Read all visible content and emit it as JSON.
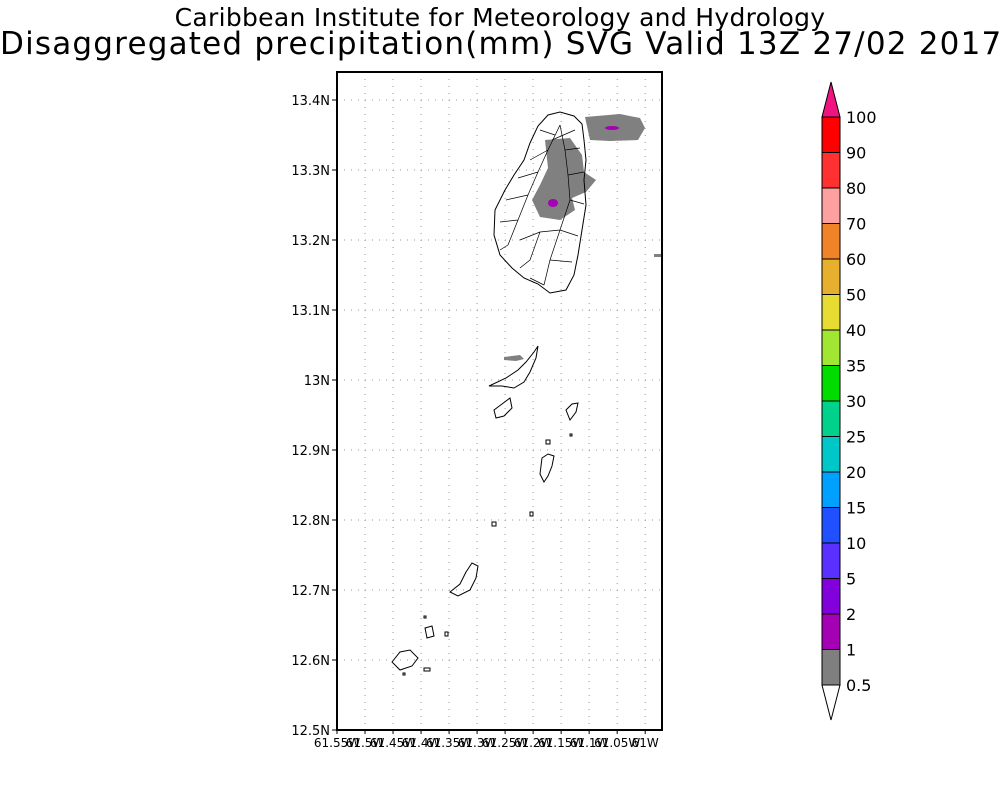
{
  "header": {
    "title": "Caribbean Institute for Meteorology and Hydrology",
    "subtitle": "Disaggregated precipitation(mm) SVG Valid 13Z 27/02 2017"
  },
  "map": {
    "lat_ticks": [
      "13.4N",
      "13.3N",
      "13.2N",
      "13.1N",
      "13N",
      "12.9N",
      "12.8N",
      "12.7N",
      "12.6N",
      "12.5N"
    ],
    "lon_ticks": [
      "61.55W",
      "61.5W",
      "61.45W",
      "61.4W",
      "61.35W",
      "61.3W",
      "61.25W",
      "61.2W",
      "61.15W",
      "61.1W",
      "61.05W",
      "61W"
    ],
    "lat_range": [
      12.5,
      13.44
    ],
    "lon_range": [
      -61.55,
      -60.97
    ],
    "grid": true
  },
  "legend": {
    "levels": [
      "0.5",
      "1",
      "2",
      "5",
      "10",
      "15",
      "20",
      "25",
      "30",
      "35",
      "40",
      "50",
      "60",
      "70",
      "80",
      "90",
      "100"
    ],
    "colors": [
      "#7f7f7f",
      "#a400b4",
      "#8200dc",
      "#5a30ff",
      "#2050ff",
      "#00a0ff",
      "#00c8c8",
      "#00d28c",
      "#00dc00",
      "#a0e632",
      "#e6dc32",
      "#e6af2d",
      "#f08228",
      "#ffa0a0",
      "#ff3030",
      "#ff0000",
      "#f03c46",
      "#f01480"
    ]
  }
}
